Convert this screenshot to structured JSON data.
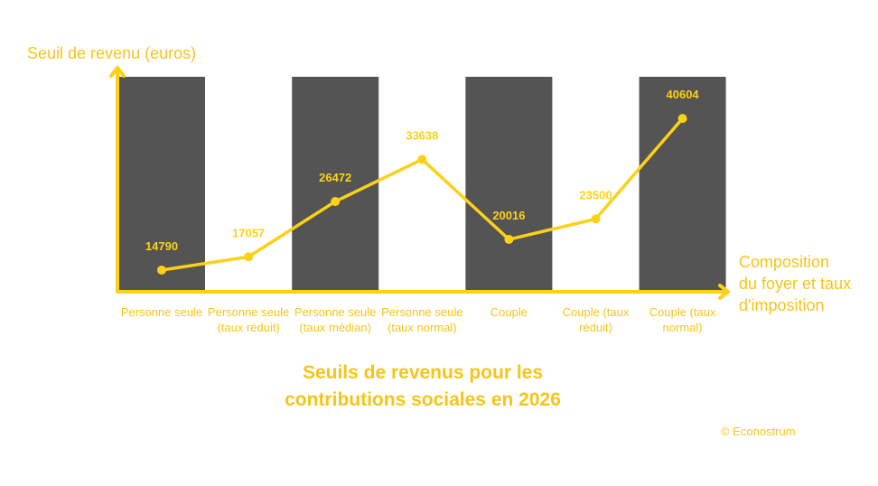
{
  "chart_data": {
    "type": "line",
    "title": "Seuils de revenus pour les contributions sociales en 2026",
    "y_label": "Seuil de revenu (euros)",
    "x_label": "Composition du foyer et taux d'imposition",
    "credit": "© Econostrum",
    "categories": [
      "Personne seule",
      "Personne seule (taux réduit)",
      "Personne seule (taux médian)",
      "Personne seule (taux normal)",
      "Couple",
      "Couple (taux réduit)",
      "Couple (taux normal)"
    ],
    "values": [
      14790,
      17057,
      26472,
      33638,
      20016,
      23500,
      40604
    ],
    "color": "#fcd116",
    "band_color": "#545454",
    "ylim": [
      11100,
      47700
    ]
  }
}
